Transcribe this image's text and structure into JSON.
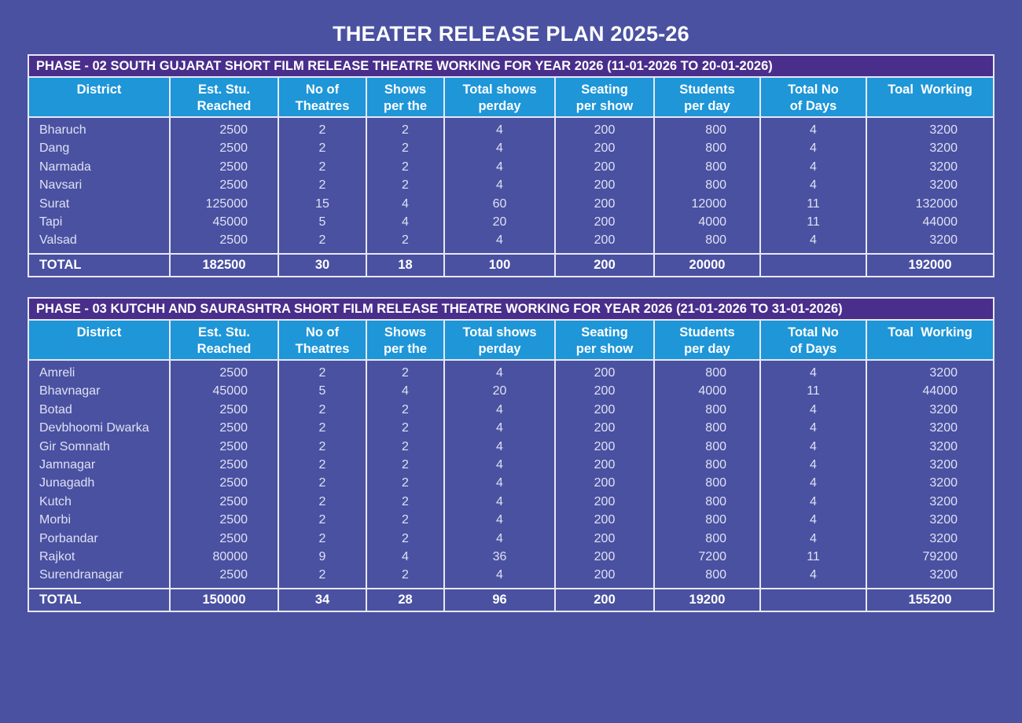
{
  "page": {
    "title": "THEATER RELEASE PLAN 2025-26"
  },
  "colors": {
    "background": "#4a51a1",
    "phase_title_bar": "#4a2e8c",
    "header_cells": "#1e96d8",
    "border": "#e8e8f4",
    "text": "#ffffff"
  },
  "columns": [
    {
      "line1": "District",
      "line2": ""
    },
    {
      "line1": "Est. Stu.",
      "line2": "Reached"
    },
    {
      "line1": "No of",
      "line2": "Theatres"
    },
    {
      "line1": "Shows",
      "line2": "per the"
    },
    {
      "line1": "Total shows",
      "line2": "perday"
    },
    {
      "line1": "Seating",
      "line2": "per show"
    },
    {
      "line1": "Students",
      "line2": "per day"
    },
    {
      "line1": "Total No",
      "line2": "of Days"
    },
    {
      "line1": "Toal  Working",
      "line2": ""
    }
  ],
  "phase2": {
    "title": "PHASE - 02  SOUTH GUJARAT SHORT FILM RELEASE THEATRE WORKING FOR YEAR 2026 (11-01-2026 TO 20-01-2026)",
    "rows": [
      {
        "district": "Bharuch",
        "est_reached": "2500",
        "theatres": "2",
        "shows_per": "2",
        "total_shows_perday": "4",
        "seating_per_show": "200",
        "students_per_day": "800",
        "total_days": "4",
        "total_working": "3200"
      },
      {
        "district": "Dang",
        "est_reached": "2500",
        "theatres": "2",
        "shows_per": "2",
        "total_shows_perday": "4",
        "seating_per_show": "200",
        "students_per_day": "800",
        "total_days": "4",
        "total_working": "3200"
      },
      {
        "district": "Narmada",
        "est_reached": "2500",
        "theatres": "2",
        "shows_per": "2",
        "total_shows_perday": "4",
        "seating_per_show": "200",
        "students_per_day": "800",
        "total_days": "4",
        "total_working": "3200"
      },
      {
        "district": "Navsari",
        "est_reached": "2500",
        "theatres": "2",
        "shows_per": "2",
        "total_shows_perday": "4",
        "seating_per_show": "200",
        "students_per_day": "800",
        "total_days": "4",
        "total_working": "3200"
      },
      {
        "district": "Surat",
        "est_reached": "125000",
        "theatres": "15",
        "shows_per": "4",
        "total_shows_perday": "60",
        "seating_per_show": "200",
        "students_per_day": "12000",
        "total_days": "11",
        "total_working": "132000"
      },
      {
        "district": "Tapi",
        "est_reached": "45000",
        "theatres": "5",
        "shows_per": "4",
        "total_shows_perday": "20",
        "seating_per_show": "200",
        "students_per_day": "4000",
        "total_days": "11",
        "total_working": "44000"
      },
      {
        "district": "Valsad",
        "est_reached": "2500",
        "theatres": "2",
        "shows_per": "2",
        "total_shows_perday": "4",
        "seating_per_show": "200",
        "students_per_day": "800",
        "total_days": "4",
        "total_working": "3200"
      }
    ],
    "total": {
      "label": "TOTAL",
      "est_reached": "182500",
      "theatres": "30",
      "shows_per": "18",
      "total_shows_perday": "100",
      "seating_per_show": "200",
      "students_per_day": "20000",
      "total_days": "",
      "total_working": "192000"
    }
  },
  "phase3": {
    "title": "PHASE - 03  KUTCHH AND SAURASHTRA  SHORT FILM RELEASE THEATRE WORKING FOR YEAR 2026 (21-01-2026 TO 31-01-2026)",
    "rows": [
      {
        "district": "Amreli",
        "est_reached": "2500",
        "theatres": "2",
        "shows_per": "2",
        "total_shows_perday": "4",
        "seating_per_show": "200",
        "students_per_day": "800",
        "total_days": "4",
        "total_working": "3200"
      },
      {
        "district": "Bhavnagar",
        "est_reached": "45000",
        "theatres": "5",
        "shows_per": "4",
        "total_shows_perday": "20",
        "seating_per_show": "200",
        "students_per_day": "4000",
        "total_days": "11",
        "total_working": "44000"
      },
      {
        "district": "Botad",
        "est_reached": "2500",
        "theatres": "2",
        "shows_per": "2",
        "total_shows_perday": "4",
        "seating_per_show": "200",
        "students_per_day": "800",
        "total_days": "4",
        "total_working": "3200"
      },
      {
        "district": "Devbhoomi Dwarka",
        "est_reached": "2500",
        "theatres": "2",
        "shows_per": "2",
        "total_shows_perday": "4",
        "seating_per_show": "200",
        "students_per_day": "800",
        "total_days": "4",
        "total_working": "3200"
      },
      {
        "district": "Gir Somnath",
        "est_reached": "2500",
        "theatres": "2",
        "shows_per": "2",
        "total_shows_perday": "4",
        "seating_per_show": "200",
        "students_per_day": "800",
        "total_days": "4",
        "total_working": "3200"
      },
      {
        "district": "Jamnagar",
        "est_reached": "2500",
        "theatres": "2",
        "shows_per": "2",
        "total_shows_perday": "4",
        "seating_per_show": "200",
        "students_per_day": "800",
        "total_days": "4",
        "total_working": "3200"
      },
      {
        "district": "Junagadh",
        "est_reached": "2500",
        "theatres": "2",
        "shows_per": "2",
        "total_shows_perday": "4",
        "seating_per_show": "200",
        "students_per_day": "800",
        "total_days": "4",
        "total_working": "3200"
      },
      {
        "district": "Kutch",
        "est_reached": "2500",
        "theatres": "2",
        "shows_per": "2",
        "total_shows_perday": "4",
        "seating_per_show": "200",
        "students_per_day": "800",
        "total_days": "4",
        "total_working": "3200"
      },
      {
        "district": "Morbi",
        "est_reached": "2500",
        "theatres": "2",
        "shows_per": "2",
        "total_shows_perday": "4",
        "seating_per_show": "200",
        "students_per_day": "800",
        "total_days": "4",
        "total_working": "3200"
      },
      {
        "district": "Porbandar",
        "est_reached": "2500",
        "theatres": "2",
        "shows_per": "2",
        "total_shows_perday": "4",
        "seating_per_show": "200",
        "students_per_day": "800",
        "total_days": "4",
        "total_working": "3200"
      },
      {
        "district": "Rajkot",
        "est_reached": "80000",
        "theatres": "9",
        "shows_per": "4",
        "total_shows_perday": "36",
        "seating_per_show": "200",
        "students_per_day": "7200",
        "total_days": "11",
        "total_working": "79200"
      },
      {
        "district": "Surendranagar",
        "est_reached": "2500",
        "theatres": "2",
        "shows_per": "2",
        "total_shows_perday": "4",
        "seating_per_show": "200",
        "students_per_day": "800",
        "total_days": "4",
        "total_working": "3200"
      }
    ],
    "total": {
      "label": "TOTAL",
      "est_reached": "150000",
      "theatres": "34",
      "shows_per": "28",
      "total_shows_perday": "96",
      "seating_per_show": "200",
      "students_per_day": "19200",
      "total_days": "",
      "total_working": "155200"
    }
  }
}
